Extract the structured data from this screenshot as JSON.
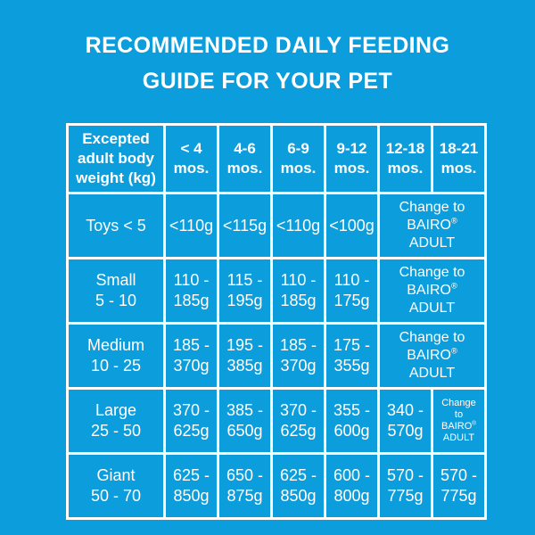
{
  "colors": {
    "background": "#0c9ddc",
    "table_border": "#ffffff",
    "text": "#ffffff"
  },
  "title": {
    "text": "RECOMMENDED DAILY FEEDING\nGUIDE FOR YOUR PET"
  },
  "chart_data": {
    "type": "table",
    "title": "RECOMMENDED DAILY FEEDING GUIDE FOR YOUR PET",
    "columns": [
      "Excepted\nadult body\nweight (kg)",
      "< 4\nmos.",
      "4-6\nmos.",
      "6-9\nmos.",
      "9-12\nmos.",
      "12-18\nmos.",
      "18-21\nmos."
    ],
    "rows": [
      {
        "cells": [
          {
            "text": "Toys < 5"
          },
          {
            "text": "<110g"
          },
          {
            "text": "<115g"
          },
          {
            "text": "<110g"
          },
          {
            "text": "<100g"
          },
          {
            "text": "Change to\nBAIRO®\nADULT",
            "colspan": 2,
            "style": "change"
          }
        ]
      },
      {
        "cells": [
          {
            "text": "Small\n5 - 10"
          },
          {
            "text": "110 -\n185g"
          },
          {
            "text": "115 -\n195g"
          },
          {
            "text": "110 -\n185g"
          },
          {
            "text": "110 -\n175g"
          },
          {
            "text": "Change to\nBAIRO®\nADULT",
            "colspan": 2,
            "style": "change"
          }
        ]
      },
      {
        "cells": [
          {
            "text": "Medium\n10 - 25"
          },
          {
            "text": "185 -\n370g"
          },
          {
            "text": "195 -\n385g"
          },
          {
            "text": "185 -\n370g"
          },
          {
            "text": "175 -\n355g"
          },
          {
            "text": "Change to\nBAIRO®\nADULT",
            "colspan": 2,
            "style": "change"
          }
        ]
      },
      {
        "cells": [
          {
            "text": "Large\n25 - 50"
          },
          {
            "text": "370 -\n625g"
          },
          {
            "text": "385 -\n650g"
          },
          {
            "text": "370 -\n625g"
          },
          {
            "text": "355 -\n600g"
          },
          {
            "text": "340 -\n570g"
          },
          {
            "text": "Change\nto\nBAIRO®\nADULT",
            "style": "change-small"
          }
        ]
      },
      {
        "cells": [
          {
            "text": "Giant\n50 - 70"
          },
          {
            "text": "625 -\n850g"
          },
          {
            "text": "650 -\n875g"
          },
          {
            "text": "625 -\n850g"
          },
          {
            "text": "600 -\n800g"
          },
          {
            "text": "570 -\n775g"
          },
          {
            "text": "570 -\n775g"
          }
        ]
      }
    ]
  }
}
